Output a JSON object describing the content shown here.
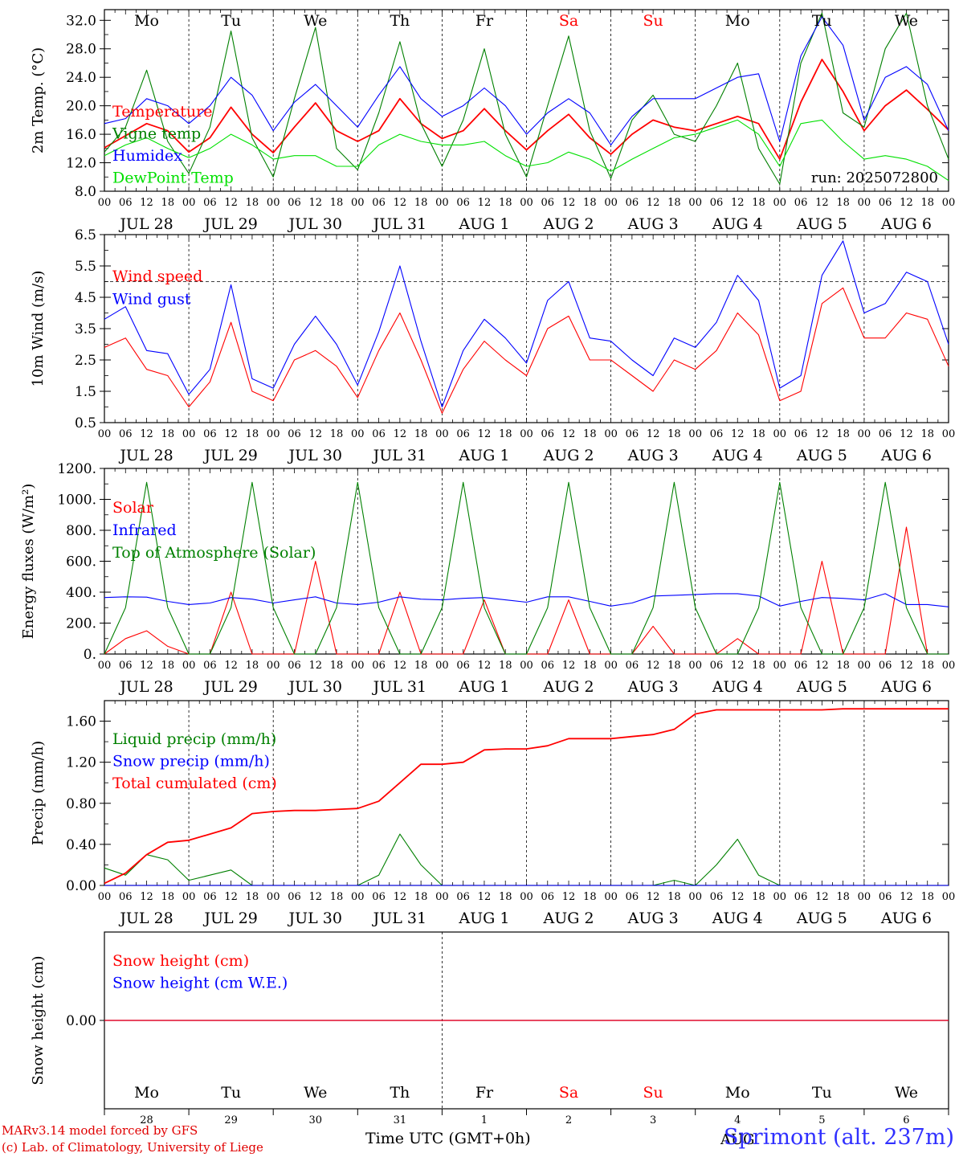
{
  "chart_data": [
    {
      "type": "line",
      "id": "temperature",
      "ylabel": "2m Temp. (°C)",
      "ylim": [
        8.0,
        33.5
      ],
      "yticks": [
        "8.0",
        "12.0",
        "16.0",
        "20.0",
        "24.0",
        "28.0",
        "32.0"
      ],
      "ytick_values": [
        8,
        12,
        16,
        20,
        24,
        28,
        32
      ],
      "grid": "daily dashed verticals",
      "legend_position": "left",
      "annotation": "run: 2025072800",
      "x_hours": [
        0,
        6,
        12,
        18,
        24,
        30,
        36,
        42,
        48,
        54,
        60,
        66,
        72,
        78,
        84,
        90,
        96,
        102,
        108,
        114,
        120,
        126,
        132,
        138,
        144,
        150,
        156,
        162,
        168,
        174,
        180,
        186,
        192,
        198,
        204,
        210,
        216,
        222,
        228,
        234,
        240
      ],
      "series": [
        {
          "name": "Temperature",
          "color": "#ff0000",
          "values": [
            14.1,
            15.8,
            17.5,
            16.5,
            13.5,
            15.5,
            19.8,
            16.0,
            13.4,
            17.0,
            20.4,
            16.5,
            15.0,
            16.5,
            21.0,
            17.5,
            15.4,
            16.5,
            19.6,
            16.5,
            13.8,
            16.5,
            18.8,
            15.5,
            13.2,
            16.0,
            18.0,
            17.0,
            16.5,
            17.5,
            18.5,
            17.5,
            12.5,
            20.5,
            26.5,
            22.0,
            16.5,
            20.0,
            22.2,
            19.5,
            16.6
          ]
        },
        {
          "name": "Vigne temp",
          "color": "#008000",
          "values": [
            13.5,
            17.0,
            25.0,
            15.0,
            10.5,
            17.0,
            30.5,
            15.5,
            10.0,
            21.0,
            31.0,
            14.0,
            11.0,
            19.0,
            29.0,
            17.5,
            11.5,
            18.0,
            28.0,
            16.0,
            10.0,
            20.0,
            29.8,
            16.5,
            9.8,
            18.0,
            21.5,
            16.0,
            15.0,
            20.0,
            26.0,
            14.0,
            9.0,
            26.0,
            33.0,
            19.0,
            17.0,
            28.0,
            33.0,
            20.0,
            12.5
          ]
        },
        {
          "name": "Humidex",
          "color": "#0000ff",
          "values": [
            17.5,
            18.2,
            21.0,
            20.0,
            17.5,
            20.0,
            24.0,
            21.5,
            16.5,
            20.5,
            23.0,
            20.0,
            17.0,
            21.5,
            25.5,
            21.0,
            18.5,
            20.0,
            22.5,
            20.0,
            16.0,
            19.0,
            21.0,
            19.0,
            14.5,
            18.5,
            21.0,
            21.0,
            21.0,
            22.5,
            24.0,
            24.5,
            15.0,
            27.0,
            32.5,
            28.5,
            18.0,
            24.0,
            25.5,
            23.0,
            16.5
          ]
        },
        {
          "name": "DewPoint Temp",
          "color": "#00e000",
          "values": [
            13.0,
            14.5,
            15.5,
            14.0,
            12.7,
            14.0,
            16.0,
            14.5,
            12.5,
            13.0,
            13.0,
            11.5,
            11.5,
            14.5,
            16.0,
            15.0,
            14.5,
            14.5,
            15.0,
            13.0,
            11.5,
            12.0,
            13.5,
            12.5,
            10.8,
            12.5,
            14.0,
            15.5,
            16.0,
            17.0,
            18.0,
            16.0,
            11.5,
            17.5,
            18.0,
            15.0,
            12.5,
            13.0,
            12.5,
            11.5,
            9.5
          ]
        }
      ]
    },
    {
      "type": "line",
      "id": "wind",
      "ylabel": "10m Wind (m/s)",
      "ylim": [
        0.5,
        6.5
      ],
      "yticks": [
        "0.5",
        "1.5",
        "2.5",
        "3.5",
        "4.5",
        "5.5",
        "6.5"
      ],
      "ytick_values": [
        0.5,
        1.5,
        2.5,
        3.5,
        4.5,
        5.5,
        6.5
      ],
      "reference_line": 5.0,
      "legend_position": "left",
      "x_hours": [
        0,
        6,
        12,
        18,
        24,
        30,
        36,
        42,
        48,
        54,
        60,
        66,
        72,
        78,
        84,
        90,
        96,
        102,
        108,
        114,
        120,
        126,
        132,
        138,
        144,
        150,
        156,
        162,
        168,
        174,
        180,
        186,
        192,
        198,
        204,
        210,
        216,
        222,
        228,
        234,
        240
      ],
      "series": [
        {
          "name": "Wind speed",
          "color": "#ff0000",
          "values": [
            2.9,
            3.2,
            2.2,
            2.0,
            1.0,
            1.8,
            3.7,
            1.5,
            1.2,
            2.5,
            2.8,
            2.3,
            1.3,
            2.8,
            4.0,
            2.5,
            0.8,
            2.2,
            3.1,
            2.5,
            2.0,
            3.5,
            3.9,
            2.5,
            2.5,
            2.0,
            1.5,
            2.5,
            2.2,
            2.8,
            4.0,
            3.3,
            1.2,
            1.5,
            4.3,
            4.8,
            3.2,
            3.2,
            4.0,
            3.8,
            2.3
          ]
        },
        {
          "name": "Wind gust",
          "color": "#0000ff",
          "values": [
            3.8,
            4.2,
            2.8,
            2.7,
            1.4,
            2.2,
            4.9,
            1.9,
            1.6,
            3.0,
            3.9,
            3.0,
            1.7,
            3.4,
            5.5,
            3.1,
            1.0,
            2.8,
            3.8,
            3.2,
            2.4,
            4.4,
            5.0,
            3.2,
            3.1,
            2.5,
            2.0,
            3.2,
            2.9,
            3.7,
            5.2,
            4.4,
            1.6,
            2.0,
            5.2,
            6.3,
            4.0,
            4.3,
            5.3,
            5.0,
            3.0
          ]
        }
      ]
    },
    {
      "type": "line",
      "id": "energy",
      "ylabel": "Energy fluxes (W/m²)",
      "ylim": [
        0,
        1200
      ],
      "yticks": [
        "0.",
        "200.",
        "400.",
        "600.",
        "800.",
        "1000.",
        "1200."
      ],
      "ytick_values": [
        0,
        200,
        400,
        600,
        800,
        1000,
        1200
      ],
      "legend_position": "left",
      "x_hours": [
        0,
        6,
        12,
        18,
        24,
        30,
        36,
        42,
        48,
        54,
        60,
        66,
        72,
        78,
        84,
        90,
        96,
        102,
        108,
        114,
        120,
        126,
        132,
        138,
        144,
        150,
        156,
        162,
        168,
        174,
        180,
        186,
        192,
        198,
        204,
        210,
        216,
        222,
        228,
        234,
        240
      ],
      "series": [
        {
          "name": "Solar",
          "color": "#ff0000",
          "values": [
            0,
            100,
            150,
            50,
            0,
            0,
            400,
            0,
            0,
            0,
            600,
            0,
            0,
            0,
            400,
            0,
            0,
            0,
            350,
            0,
            0,
            0,
            350,
            0,
            0,
            0,
            180,
            0,
            0,
            0,
            100,
            0,
            0,
            0,
            600,
            0,
            0,
            0,
            820,
            0,
            0
          ]
        },
        {
          "name": "Infrared",
          "color": "#0000ff",
          "values": [
            365,
            370,
            368,
            340,
            320,
            330,
            365,
            355,
            330,
            350,
            370,
            330,
            320,
            335,
            370,
            355,
            350,
            360,
            365,
            350,
            335,
            370,
            370,
            340,
            310,
            330,
            375,
            380,
            385,
            390,
            390,
            375,
            310,
            340,
            365,
            360,
            350,
            390,
            320,
            320,
            305
          ]
        },
        {
          "name": "Top of Atmosphere (Solar)",
          "color": "#008000",
          "values": [
            0,
            300,
            1110,
            300,
            0,
            0,
            300,
            1110,
            300,
            0,
            0,
            300,
            1110,
            300,
            0,
            0,
            300,
            1110,
            300,
            0,
            0,
            300,
            1110,
            300,
            0,
            0,
            300,
            1110,
            300,
            0,
            0,
            300,
            1110,
            300,
            0,
            0,
            300,
            1110,
            300,
            0,
            0
          ]
        }
      ]
    },
    {
      "type": "line",
      "id": "precip",
      "ylabel": "Precip (mm/h)",
      "ylim": [
        0,
        1.8
      ],
      "yticks": [
        "0.00",
        "0.40",
        "0.80",
        "1.20",
        "1.60"
      ],
      "ytick_values": [
        0,
        0.4,
        0.8,
        1.2,
        1.6
      ],
      "legend_position": "left",
      "x_hours": [
        0,
        6,
        12,
        18,
        24,
        30,
        36,
        42,
        48,
        54,
        60,
        66,
        72,
        78,
        84,
        90,
        96,
        102,
        108,
        114,
        120,
        126,
        132,
        138,
        144,
        150,
        156,
        162,
        168,
        174,
        180,
        186,
        192,
        198,
        204,
        210,
        216,
        222,
        228,
        234,
        240
      ],
      "series": [
        {
          "name": "Liquid precip (mm/h)",
          "color": "#008000",
          "values": [
            0.17,
            0.1,
            0.3,
            0.25,
            0.05,
            0.1,
            0.15,
            0.0,
            0.0,
            0.0,
            0.0,
            0.0,
            0.0,
            0.1,
            0.5,
            0.2,
            0.0,
            0.0,
            0.0,
            0.0,
            0.0,
            0.0,
            0.0,
            0.0,
            0.0,
            0.0,
            0.0,
            0.05,
            0.0,
            0.2,
            0.45,
            0.1,
            0.0,
            0.0,
            0.0,
            0.0,
            0.0,
            0.0,
            0.0,
            0.0,
            0.0
          ]
        },
        {
          "name": "Snow precip (mm/h)",
          "color": "#0000ff",
          "values": [
            0,
            0,
            0,
            0,
            0,
            0,
            0,
            0,
            0,
            0,
            0,
            0,
            0,
            0,
            0,
            0,
            0,
            0,
            0,
            0,
            0,
            0,
            0,
            0,
            0,
            0,
            0,
            0,
            0,
            0,
            0,
            0,
            0,
            0,
            0,
            0,
            0,
            0,
            0,
            0,
            0
          ]
        },
        {
          "name": "Total cumulated (cm)",
          "color": "#ff0000",
          "values": [
            0.02,
            0.12,
            0.3,
            0.42,
            0.44,
            0.5,
            0.56,
            0.7,
            0.72,
            0.73,
            0.73,
            0.74,
            0.75,
            0.82,
            1.0,
            1.18,
            1.18,
            1.2,
            1.32,
            1.33,
            1.33,
            1.36,
            1.43,
            1.43,
            1.43,
            1.45,
            1.47,
            1.52,
            1.67,
            1.71,
            1.71,
            1.71,
            1.71,
            1.71,
            1.71,
            1.72,
            1.72,
            1.72,
            1.72,
            1.72,
            1.72
          ]
        }
      ]
    },
    {
      "type": "line",
      "id": "snow",
      "ylabel": "Snow height (cm)",
      "yticks": [
        "0.00"
      ],
      "ytick_values": [
        0
      ],
      "legend_position": "left",
      "series": [
        {
          "name": "Snow height (cm)",
          "color": "#ff0000",
          "values": [
            0,
            0
          ]
        },
        {
          "name": "Snow height (cm W.E.)",
          "color": "#0000ff",
          "values": [
            0,
            0
          ]
        }
      ]
    }
  ],
  "top_day_labels": [
    {
      "label": "Mo",
      "color": "#000000"
    },
    {
      "label": "Tu",
      "color": "#000000"
    },
    {
      "label": "We",
      "color": "#000000"
    },
    {
      "label": "Th",
      "color": "#000000"
    },
    {
      "label": "Fr",
      "color": "#000000"
    },
    {
      "label": "Sa",
      "color": "#ff0000"
    },
    {
      "label": "Su",
      "color": "#ff0000"
    },
    {
      "label": "Mo",
      "color": "#000000"
    },
    {
      "label": "Tu",
      "color": "#000000"
    },
    {
      "label": "We",
      "color": "#000000"
    }
  ],
  "hour_ticks": [
    "00",
    "06",
    "12",
    "18"
  ],
  "last_hour_tick": "00",
  "date_labels": [
    "JUL 28",
    "JUL 29",
    "JUL 30",
    "JUL 31",
    "AUG  1",
    "AUG  2",
    "AUG  3",
    "AUG  4",
    "AUG  5",
    "AUG  6"
  ],
  "bottom_day_numbers": [
    "28",
    "29",
    "30",
    "31",
    "1",
    "2",
    "3",
    "4",
    "5",
    "6"
  ],
  "bottom_month_label": "AUG",
  "x_axis_title": "Time UTC (GMT+0h)",
  "credit_line_1": "MARv3.14 model forced by GFS",
  "credit_line_2": "(c) Lab. of Climatology, University of Liege",
  "station_label": "Sprimont (alt. 237m)"
}
